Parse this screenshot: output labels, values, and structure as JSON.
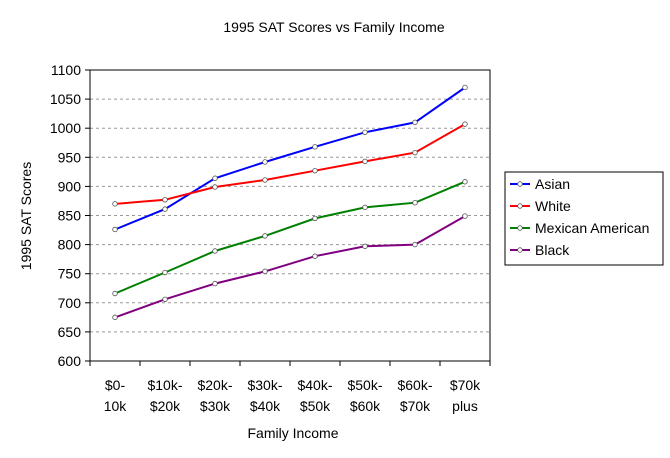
{
  "chart_data": {
    "type": "line",
    "title": "1995 SAT Scores vs Family Income",
    "xlabel": "Family Income",
    "ylabel": "1995 SAT Scores",
    "ylim": [
      600,
      1100
    ],
    "ytick_step": 50,
    "grid": "horizontal-dashed",
    "legend_position": "right",
    "categories": [
      [
        "$0-",
        "10k"
      ],
      [
        "$10k-",
        "$20k"
      ],
      [
        "$20k-",
        "$30k"
      ],
      [
        "$30k-",
        "$40k"
      ],
      [
        "$40k-",
        "$50k"
      ],
      [
        "$50k-",
        "$60k"
      ],
      [
        "$60k-",
        "$70k"
      ],
      [
        "$70k",
        "plus"
      ]
    ],
    "series": [
      {
        "name": "Asian",
        "color": "#0000ff",
        "values": [
          826,
          861,
          914,
          942,
          968,
          993,
          1010,
          1070
        ]
      },
      {
        "name": "White",
        "color": "#ff0000",
        "values": [
          870,
          877,
          899,
          911,
          927,
          943,
          958,
          1007
        ]
      },
      {
        "name": "Mexican American",
        "color": "#008000",
        "values": [
          716,
          752,
          789,
          815,
          845,
          864,
          872,
          908
        ]
      },
      {
        "name": "Black",
        "color": "#800080",
        "values": [
          675,
          706,
          733,
          754,
          780,
          797,
          800,
          849
        ]
      }
    ]
  }
}
